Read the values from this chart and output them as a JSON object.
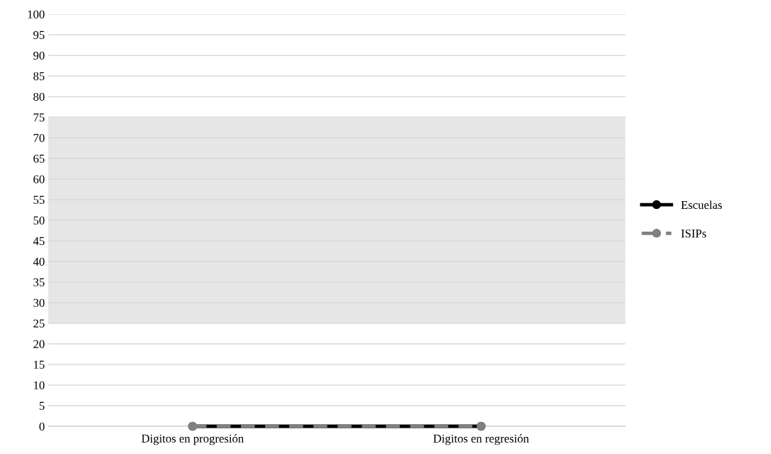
{
  "chart_data": {
    "type": "line",
    "categories": [
      "Digitos en progresión",
      "Digitos en regresión"
    ],
    "series": [
      {
        "name": "Escuelas",
        "color": "#000000",
        "values": [
          0,
          0
        ],
        "line_style": "solid"
      },
      {
        "name": "ISIPs",
        "color": "#808080",
        "values": [
          0,
          0
        ],
        "line_style": "dashed"
      }
    ],
    "ylim": [
      0,
      100
    ],
    "yticks": [
      0,
      5,
      10,
      15,
      20,
      25,
      30,
      35,
      40,
      45,
      50,
      55,
      60,
      65,
      70,
      75,
      80,
      85,
      90,
      95,
      100
    ],
    "bands": [
      {
        "axis": "y",
        "from": 25,
        "to": 75,
        "color": "#e6e6e6"
      }
    ],
    "grid": "y",
    "legend": "right",
    "marker": "circle"
  }
}
